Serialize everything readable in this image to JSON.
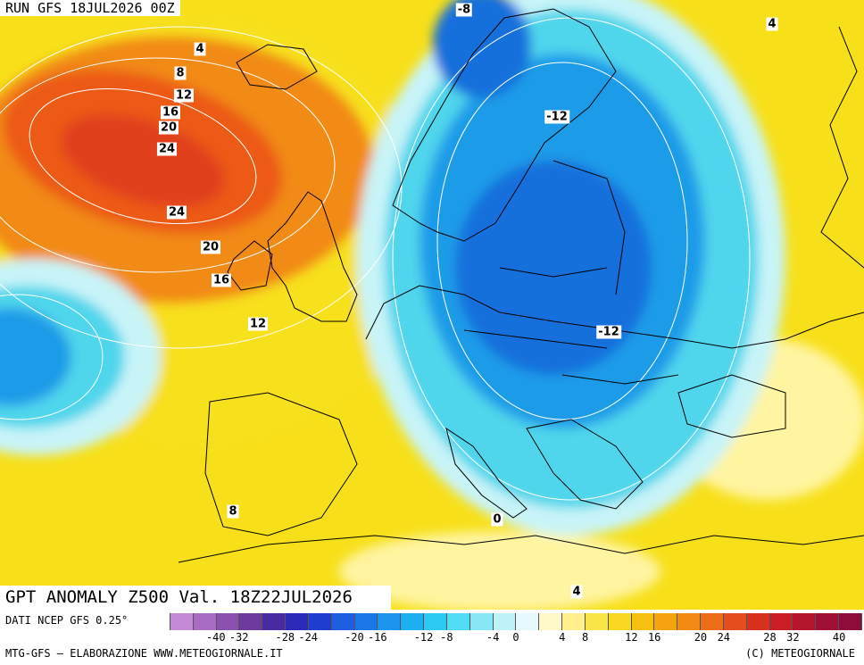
{
  "header": {
    "run_label": "RUN GFS 18JUL2026 00Z"
  },
  "map": {
    "title": "GPT ANOMALY Z500 Val. 18Z22JUL2026",
    "contour_labels": [
      "-8",
      "4",
      "8",
      "12",
      "16",
      "20",
      "24",
      "24",
      "20",
      "16",
      "12",
      "-12",
      "-12",
      "4",
      "8",
      "0",
      "4"
    ],
    "colors": {
      "red_core": "#e0401c",
      "orange": "#f28a14",
      "yellow": "#f7e01a",
      "pale_yellow": "#fff4a0",
      "light_cyan": "#c8f4f8",
      "cyan": "#4fd6ec",
      "blue": "#1e9be8",
      "deep_blue": "#1770dc",
      "coastline": "#000000",
      "isoline": "#ffffff"
    }
  },
  "legend": {
    "source": "DATI NCEP GFS 0.25°",
    "credit": "MTG-GFS — ELABORAZIONE WWW.METEOGIORNALE.IT",
    "copyright": "(C) METEOGIORNALE",
    "scale_colors": [
      "#c58ad6",
      "#a86cc4",
      "#8c50b0",
      "#6e3a9c",
      "#4a2aa0",
      "#2c2ab8",
      "#1f3ed0",
      "#1c5ee0",
      "#1a78e6",
      "#1a94ec",
      "#1cb0f0",
      "#2ccaf2",
      "#4fdcf4",
      "#86e8f6",
      "#bdf2f8",
      "#e6fafb",
      "#fff8c8",
      "#fff08c",
      "#fbe64a",
      "#f8d820",
      "#f6c010",
      "#f4a410",
      "#f28a14",
      "#ec6c18",
      "#e44e1c",
      "#d8321e",
      "#c81e24",
      "#b4142c",
      "#a01034",
      "#8c0c3c"
    ],
    "scale_ticks": [
      "-40",
      "-32",
      "-28",
      "-24",
      "-20",
      "-16",
      "-12",
      "-8",
      "-4",
      "0",
      "4",
      "8",
      "12",
      "16",
      "20",
      "24",
      "28",
      "32",
      "40"
    ]
  }
}
